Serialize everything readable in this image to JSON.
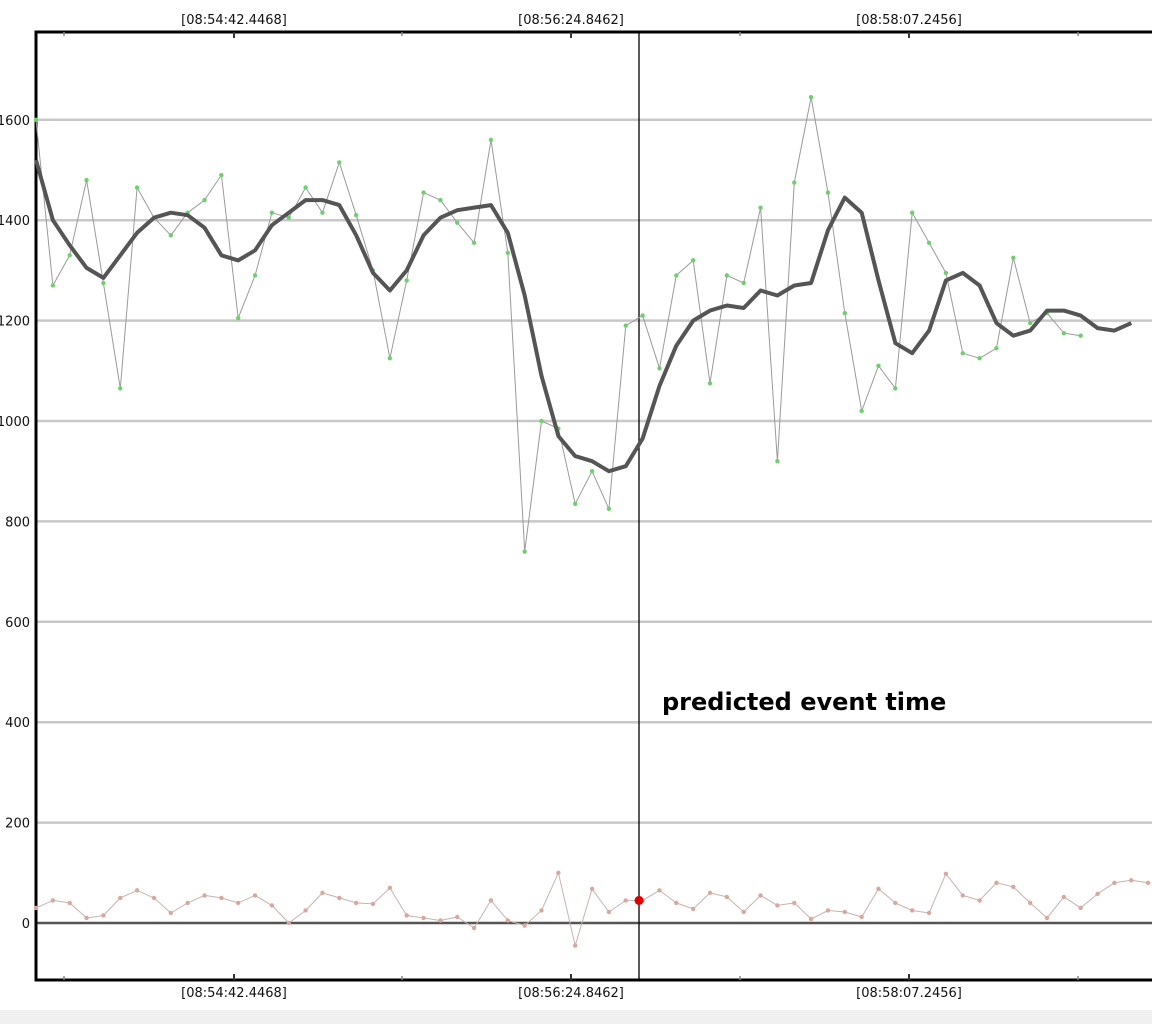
{
  "chart_data": {
    "type": "line",
    "title": "",
    "xlabel": "",
    "ylabel": "",
    "ylim": [
      -110,
      1760
    ],
    "x_tick_labels": [
      "[08:54:42.4468]",
      "[08:56:24.8462]",
      "[08:58:07.2456]"
    ],
    "y_ticks": [
      0,
      200,
      400,
      600,
      800,
      1000,
      1200,
      1400,
      1600
    ],
    "y_tick_labels": [
      "0",
      "200",
      "400",
      "600",
      "800",
      "1000",
      "1200",
      "1400",
      "1600"
    ],
    "grid": true,
    "annotation": "predicted event time",
    "event_index": 35,
    "series": [
      {
        "color": "#9a9a9a",
        "marker_color": "#6fcf6f",
        "values": [
          1600,
          1270,
          1330,
          1480,
          1275,
          1065,
          1465,
          1405,
          1370,
          1415,
          1440,
          1490,
          1205,
          1290,
          1415,
          1405,
          1465,
          1415,
          1515,
          1410,
          1300,
          1125,
          1280,
          1455,
          1440,
          1395,
          1355,
          1560,
          1335,
          740,
          1000,
          985,
          835,
          900,
          825,
          1190,
          1210,
          1105,
          1290,
          1320,
          1075,
          1290,
          1275,
          1425,
          920,
          1475,
          1645,
          1455,
          1215,
          1020,
          1110,
          1065,
          1415,
          1355,
          1295,
          1135,
          1125,
          1145,
          1325,
          1195,
          1215,
          1175,
          1170
        ]
      },
      {
        "color": "#555555",
        "values": [
          1520,
          1400,
          1350,
          1305,
          1285,
          1330,
          1375,
          1405,
          1415,
          1410,
          1385,
          1330,
          1320,
          1340,
          1390,
          1415,
          1440,
          1440,
          1430,
          1370,
          1295,
          1260,
          1300,
          1370,
          1405,
          1420,
          1425,
          1430,
          1375,
          1250,
          1090,
          970,
          930,
          920,
          900,
          910,
          965,
          1070,
          1150,
          1200,
          1220,
          1230,
          1225,
          1260,
          1250,
          1270,
          1275,
          1380,
          1445,
          1415,
          1280,
          1155,
          1135,
          1180,
          1280,
          1295,
          1270,
          1195,
          1170,
          1180,
          1220,
          1220,
          1210,
          1185,
          1180,
          1195
        ]
      },
      {
        "color": "#c6b3b0",
        "marker_color": "#d8a89c",
        "values": [
          30,
          45,
          40,
          10,
          15,
          50,
          65,
          50,
          20,
          40,
          55,
          50,
          40,
          55,
          35,
          0,
          25,
          60,
          50,
          40,
          38,
          70,
          15,
          10,
          5,
          12,
          -10,
          45,
          5,
          -5,
          25,
          100,
          -45,
          68,
          22,
          45,
          45,
          65,
          40,
          28,
          60,
          52,
          22,
          55,
          35,
          40,
          8,
          25,
          22,
          12,
          68,
          40,
          25,
          20,
          98,
          55,
          45,
          80,
          72,
          40,
          10,
          52,
          30,
          58,
          80,
          85,
          80
        ]
      }
    ]
  }
}
